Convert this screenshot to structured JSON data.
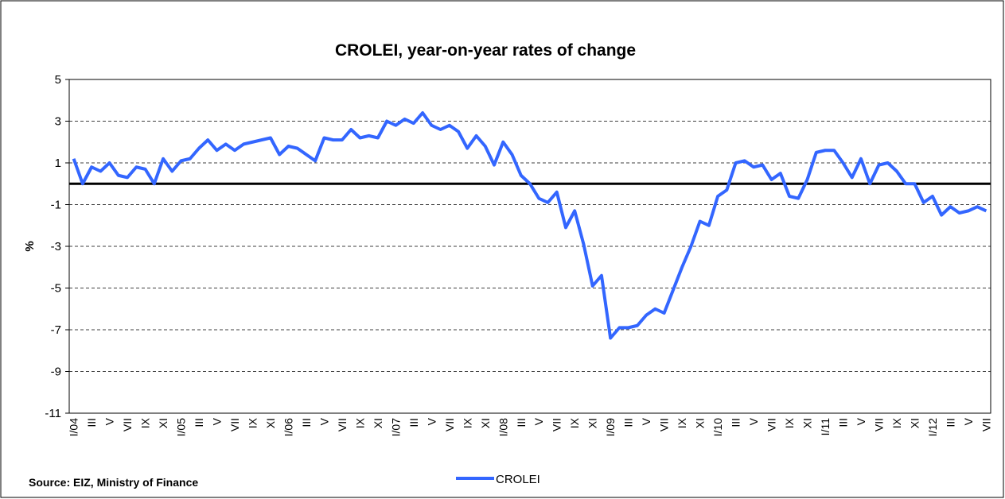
{
  "chart_data": {
    "type": "line",
    "title": "CROLEI, year-on-year rates of change",
    "y_label": "%",
    "source": "Source: EIZ, Ministry of Finance",
    "categories": [
      "I/04",
      null,
      "III",
      null,
      "V",
      null,
      "VII",
      null,
      "IX",
      null,
      "XI",
      null,
      "I/05",
      null,
      "III",
      null,
      "V",
      null,
      "VII",
      null,
      "IX",
      null,
      "XI",
      null,
      "I/06",
      null,
      "III",
      null,
      "V",
      null,
      "VII",
      null,
      "IX",
      null,
      "XI",
      null,
      "I/07",
      null,
      "III",
      null,
      "V",
      null,
      "VII",
      null,
      "IX",
      null,
      "XI",
      null,
      "I/08",
      null,
      "III",
      null,
      "V",
      null,
      "VII",
      null,
      "IX",
      null,
      "XI",
      null,
      "I/09",
      null,
      "III",
      null,
      "V",
      null,
      "VII",
      null,
      "IX",
      null,
      "XI",
      null,
      "I/10",
      null,
      "III",
      null,
      "V",
      null,
      "VII",
      null,
      "IX",
      null,
      "XI",
      null,
      "I/11",
      null,
      "III",
      null,
      "V",
      null,
      "VII",
      null,
      "IX",
      null,
      "XI",
      null,
      "I/12",
      null,
      "III",
      null,
      "V",
      null,
      "VII"
    ],
    "series": [
      {
        "name": "CROLEI",
        "color": "#3366ff",
        "values": [
          1.2,
          0.0,
          0.8,
          0.6,
          1.0,
          0.4,
          0.3,
          0.8,
          0.7,
          0.0,
          1.2,
          0.6,
          1.1,
          1.2,
          1.7,
          2.1,
          1.6,
          1.9,
          1.6,
          1.9,
          2.0,
          2.1,
          2.2,
          1.4,
          1.8,
          1.7,
          1.4,
          1.1,
          2.2,
          2.1,
          2.1,
          2.6,
          2.2,
          2.3,
          2.2,
          3.0,
          2.8,
          3.1,
          2.9,
          3.4,
          2.8,
          2.6,
          2.8,
          2.5,
          1.7,
          2.3,
          1.8,
          0.9,
          2.0,
          1.4,
          0.4,
          0.0,
          -0.7,
          -0.9,
          -0.4,
          -2.1,
          -1.3,
          -2.9,
          -4.9,
          -4.4,
          -7.4,
          -6.9,
          -6.9,
          -6.8,
          -6.3,
          -6.0,
          -6.2,
          -5.1,
          -4.0,
          -3.0,
          -1.8,
          -2.0,
          -0.6,
          -0.3,
          1.0,
          1.1,
          0.8,
          0.9,
          0.2,
          0.5,
          -0.6,
          -0.7,
          0.2,
          1.5,
          1.6,
          1.6,
          1.0,
          0.3,
          1.2,
          0.0,
          0.9,
          1.0,
          0.6,
          0.0,
          0.0,
          -0.9,
          -0.6,
          -1.5,
          -1.1,
          -1.4,
          -1.3,
          -1.1,
          -1.3
        ]
      }
    ],
    "ylim": [
      -11,
      5
    ],
    "yticks": [
      5,
      3,
      1,
      -1,
      -3,
      -5,
      -7,
      -9,
      -11
    ],
    "grid": true,
    "legend": "bottom"
  }
}
